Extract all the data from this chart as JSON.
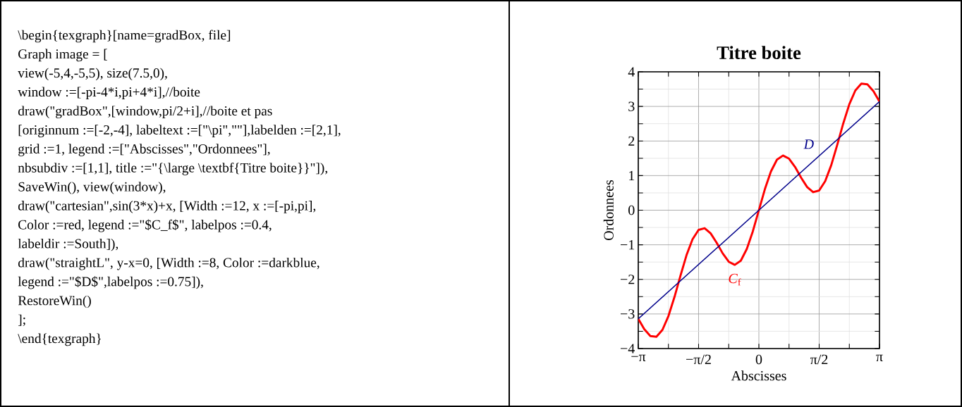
{
  "chart_data": [
    {
      "type": "other",
      "annotations": [
        "\\begin{texgraph}[name=gradBox, file]",
        "Graph image = [",
        "view(-5,4,-5,5), size(7.5,0),",
        "window :=[-pi-4*i,pi+4*i],//boite",
        "draw(\"gradBox\",[window,pi/2+i],//boite et pas",
        "[originnum :=[-2,-4], labeltext :=[\"\\pi\",\"\"],labelden :=[2,1],",
        "grid :=1, legend :=[\"Abscisses\",\"Ordonnees\"],",
        "nbsubdiv :=[1,1], title :=\"{\\large \\textbf{Titre boite}}\"]),",
        "SaveWin(), view(window),",
        "draw(\"cartesian\",sin(3*x)+x, [Width :=12, x :=[-pi,pi],",
        "Color :=red, legend :=\"$C_f$\", labelpos :=0.4,",
        "labeldir :=South]),",
        "draw(\"straightL\", y-x=0, [Width :=8, Color :=darkblue,",
        "legend :=\"$D$\",labelpos :=0.75]),",
        "RestoreWin()",
        "];",
        "\\end{texgraph}"
      ]
    },
    {
      "type": "line",
      "title": "Titre boite",
      "xlabel": "Abscisses",
      "ylabel": "Ordonnees",
      "xlim": [
        -3.142,
        3.142
      ],
      "ylim": [
        -4,
        4
      ],
      "xticks": [
        {
          "value": -3.142,
          "label": "−π"
        },
        {
          "value": -1.571,
          "label": "−π/2"
        },
        0,
        {
          "value": 1.571,
          "label": "π/2"
        },
        {
          "value": 3.142,
          "label": "π"
        }
      ],
      "yticks": [
        {
          "value": -4,
          "label": "−4"
        },
        {
          "value": -3,
          "label": "−3"
        },
        {
          "value": -2,
          "label": "−2"
        },
        {
          "value": -1,
          "label": "−1"
        },
        0,
        1,
        2,
        3,
        4
      ],
      "grid": true,
      "legend": false,
      "series": [
        {
          "name": "*C*$_{f}$",
          "color": "#ff0000",
          "x": [
            -3.142,
            -2.985,
            -2.827,
            -2.67,
            -2.513,
            -2.356,
            -2.199,
            -2.042,
            -1.885,
            -1.728,
            -1.571,
            -1.414,
            -1.257,
            -1.1,
            -0.942,
            -0.785,
            -0.628,
            -0.471,
            -0.314,
            -0.157,
            0,
            0.157,
            0.314,
            0.471,
            0.628,
            0.785,
            0.942,
            1.1,
            1.257,
            1.414,
            1.571,
            1.728,
            1.885,
            2.042,
            2.199,
            2.356,
            2.513,
            2.67,
            2.827,
            2.985,
            3.142
          ],
          "values": [
            -3.14,
            -3.44,
            -3.64,
            -3.66,
            -3.46,
            -3.06,
            -2.51,
            -1.89,
            -1.3,
            -0.84,
            -0.57,
            -0.52,
            -0.67,
            -0.94,
            -1.25,
            -1.49,
            -1.58,
            -1.46,
            -1.12,
            -0.61,
            0,
            0.61,
            1.12,
            1.46,
            1.58,
            1.49,
            1.25,
            0.94,
            0.67,
            0.52,
            0.57,
            0.84,
            1.3,
            1.89,
            2.51,
            3.06,
            3.46,
            3.66,
            3.64,
            3.44,
            3.14
          ]
        },
        {
          "name": "*D*",
          "color": "#00008b",
          "x": [
            -3.14,
            3.14
          ],
          "values": [
            -3.14,
            3.14
          ]
        }
      ]
    }
  ]
}
